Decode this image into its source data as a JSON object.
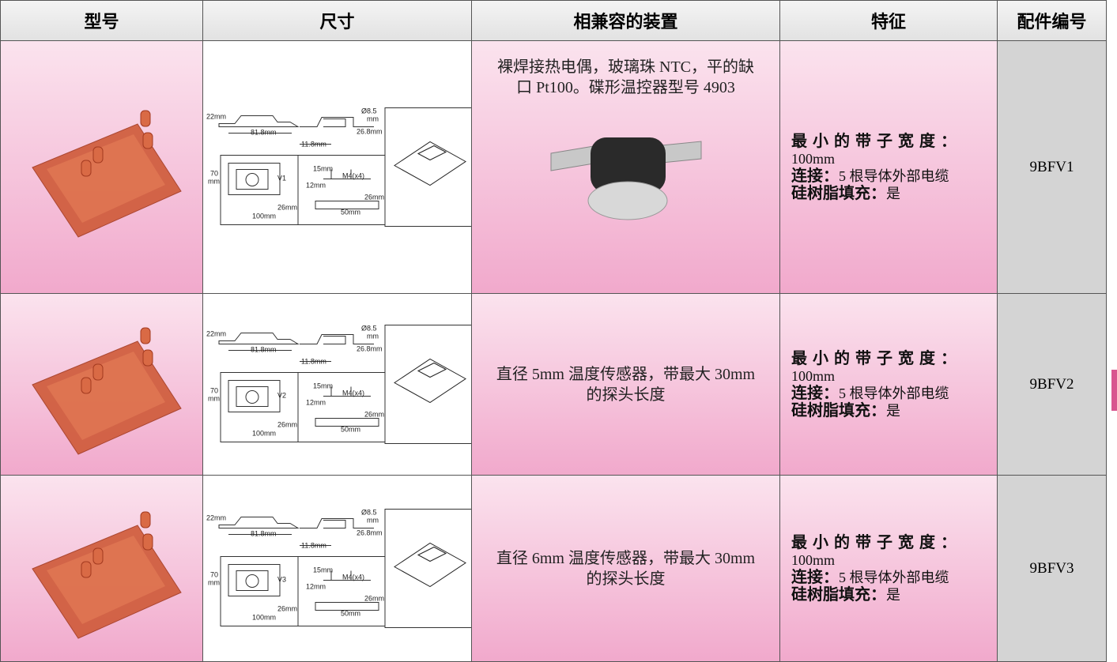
{
  "table": {
    "headers": [
      "型号",
      "尺寸",
      "相兼容的装置",
      "特征",
      "配件编号"
    ],
    "rows": [
      {
        "diagram_labels": [
          "22mm",
          "Ø8.5",
          "mm",
          "81.8mm",
          "26.8mm",
          "11.8mm",
          "70",
          "mm",
          "V1",
          "26mm",
          "100mm",
          "15mm",
          "M4(x4)",
          "12mm",
          "26mm",
          "50mm"
        ],
        "compatible": "裸焊接热电偶，玻璃珠 NTC，平的缺口 Pt100。碟形温控器型号 4903",
        "features": [
          {
            "label": "最小的带子宽度：",
            "value": "100mm"
          },
          {
            "label": "连接：",
            "value": "5 根导体外部电缆"
          },
          {
            "label": "硅树脂填充：",
            "value": "是"
          }
        ],
        "part_number": "9BFV1"
      },
      {
        "diagram_labels": [
          "22mm",
          "Ø8.5",
          "mm",
          "81.8mm",
          "26.8mm",
          "11.8mm",
          "70",
          "mm",
          "V2",
          "26mm",
          "100mm",
          "15mm",
          "M4(x4)",
          "12mm",
          "26mm",
          "50mm"
        ],
        "compatible": "直径 5mm 温度传感器，带最大 30mm 的探头长度",
        "features": [
          {
            "label": "最小的带子宽度：",
            "value": "100mm"
          },
          {
            "label": "连接：",
            "value": "5 根导体外部电缆"
          },
          {
            "label": "硅树脂填充：",
            "value": "是"
          }
        ],
        "part_number": "9BFV2"
      },
      {
        "diagram_labels": [
          "22mm",
          "Ø8.5",
          "mm",
          "81.8mm",
          "26.8mm",
          "11.8mm",
          "70",
          "mm",
          "V3",
          "26mm",
          "100mm",
          "15mm",
          "M4(x4)",
          "12mm",
          "26mm",
          "50mm"
        ],
        "compatible": "直径 6mm 温度传感器，带最大 30mm 的探头长度",
        "features": [
          {
            "label": "最小的带子宽度：",
            "value": "100mm"
          },
          {
            "label": "连接：",
            "value": "5 根导体外部电缆"
          },
          {
            "label": "硅树脂填充：",
            "value": "是"
          }
        ],
        "part_number": "9BFV3"
      }
    ]
  }
}
